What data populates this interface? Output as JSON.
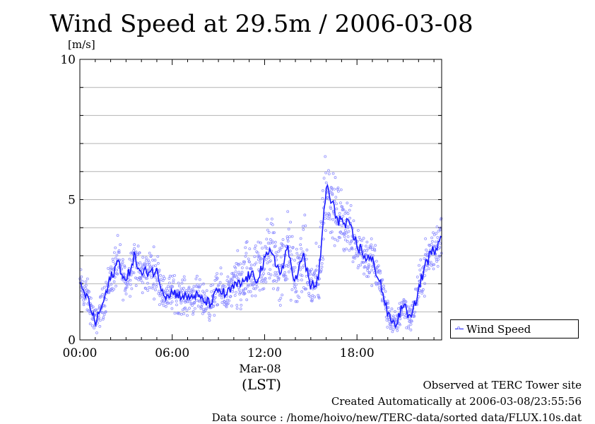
{
  "chart_data": {
    "type": "scatter",
    "title": "Wind Speed at 29.5m / 2006-03-08",
    "ylabel": "[m/s]",
    "ylim": [
      0,
      10
    ],
    "yticks": [
      0,
      5,
      10
    ],
    "xlim_hours": [
      0,
      23.5
    ],
    "xticks": [
      "00:00",
      "06:00",
      "12:00",
      "18:00"
    ],
    "xsublabel": "Mar-08",
    "xunit": "(LST)",
    "grid": true,
    "legend": {
      "placement": "right",
      "entries": [
        "Wind Speed"
      ]
    },
    "series": [
      {
        "name": "Wind Speed",
        "color": "#1a1aff",
        "point_color": "#8f8fff",
        "hours": [
          0,
          0.5,
          1,
          1.5,
          2,
          2.5,
          3,
          3.5,
          4,
          4.5,
          5,
          5.5,
          6,
          6.5,
          7,
          7.5,
          8,
          8.5,
          9,
          9.5,
          10,
          10.5,
          11,
          11.5,
          12,
          12.5,
          13,
          13.5,
          14,
          14.5,
          15,
          15.5,
          16,
          16.5,
          17,
          17.5,
          18,
          18.5,
          19,
          19.5,
          20,
          20.5,
          21,
          21.5,
          22,
          22.5,
          23,
          23.5
        ],
        "values": [
          1.9,
          1.5,
          0.6,
          1.3,
          2.2,
          2.8,
          2.0,
          3.0,
          2.3,
          2.5,
          2.4,
          1.6,
          1.7,
          1.6,
          1.5,
          1.6,
          1.4,
          1.3,
          1.8,
          1.6,
          1.9,
          2.0,
          2.3,
          2.2,
          2.8,
          3.2,
          2.3,
          3.2,
          2.1,
          3.0,
          1.9,
          2.1,
          5.5,
          4.6,
          4.2,
          4.0,
          3.4,
          3.0,
          2.8,
          2.1,
          0.9,
          0.5,
          1.3,
          0.7,
          1.8,
          2.8,
          3.2,
          3.8
        ]
      }
    ]
  },
  "legend_label": "Wind Speed",
  "footer": {
    "site": "Observed at TERC Tower site",
    "created": "Created Automatically at 2006-03-08/23:55:56",
    "source": "Data source : /home/hoivo/new/TERC-data/sorted  data/FLUX.10s.dat"
  }
}
